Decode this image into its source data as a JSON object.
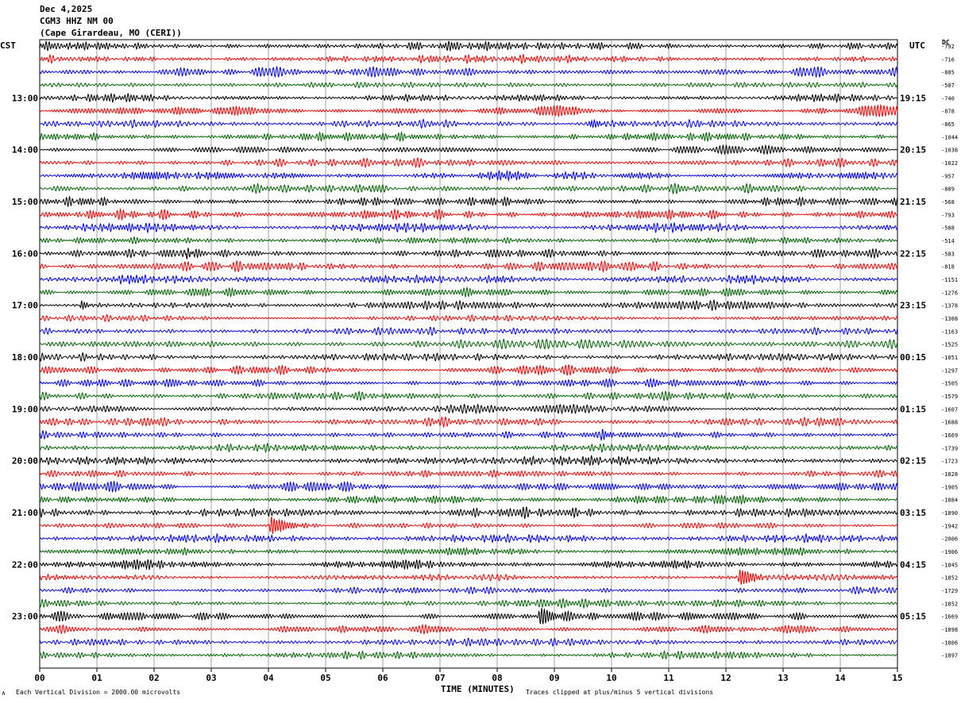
{
  "header": {
    "date": "Dec 4,2025",
    "station": "CGM3 HHZ NM 00",
    "location": "(Cape Girardeau, MO (CERI))"
  },
  "left_axis_label": "CST",
  "right_axis_label": "UTC",
  "dc_label": "DC",
  "footer": {
    "scale_note": "Each Vertical Division = 2000.00 microvolts",
    "clip_note": "Traces clipped at plus/minus 5 vertical divisions",
    "mark": "∧"
  },
  "colors": {
    "trace_cycle": [
      "#000000",
      "#ff0000",
      "#0000ff",
      "#006400"
    ],
    "grid": "#7a7a7a",
    "frame": "#000000"
  },
  "chart_data": {
    "type": "line",
    "title": "CGM3 HHZ NM 00",
    "xlabel": "TIME (MINUTES)",
    "xlim": [
      0,
      15
    ],
    "x_ticks": [
      "00",
      "01",
      "02",
      "03",
      "04",
      "05",
      "06",
      "07",
      "08",
      "09",
      "10",
      "11",
      "12",
      "13",
      "14",
      "15"
    ],
    "trace_count": 48,
    "trace_minutes": 15,
    "local_time_labels": [
      {
        "trace": 4,
        "label": "13:00"
      },
      {
        "trace": 8,
        "label": "14:00"
      },
      {
        "trace": 12,
        "label": "15:00"
      },
      {
        "trace": 16,
        "label": "16:00"
      },
      {
        "trace": 20,
        "label": "17:00"
      },
      {
        "trace": 24,
        "label": "18:00"
      },
      {
        "trace": 28,
        "label": "19:00"
      },
      {
        "trace": 32,
        "label": "20:00"
      },
      {
        "trace": 36,
        "label": "21:00"
      },
      {
        "trace": 40,
        "label": "22:00"
      },
      {
        "trace": 44,
        "label": "23:00"
      }
    ],
    "utc_time_labels": [
      {
        "trace": 4,
        "label": "19:15"
      },
      {
        "trace": 8,
        "label": "20:15"
      },
      {
        "trace": 12,
        "label": "21:15"
      },
      {
        "trace": 16,
        "label": "22:15"
      },
      {
        "trace": 20,
        "label": "23:15"
      },
      {
        "trace": 24,
        "label": "00:15"
      },
      {
        "trace": 28,
        "label": "01:15"
      },
      {
        "trace": 32,
        "label": "02:15"
      },
      {
        "trace": 36,
        "label": "03:15"
      },
      {
        "trace": 40,
        "label": "04:15"
      },
      {
        "trace": 44,
        "label": "05:15"
      }
    ],
    "dc_offsets": [
      "-792",
      "-716",
      "-885",
      "-507",
      "-740",
      "-878",
      "-865",
      "-1044",
      "-1038",
      "-1022",
      "-957",
      "-889",
      "-568",
      "-793",
      "-588",
      "-514",
      "-583",
      "-818",
      "-1151",
      "-1276",
      "-1378",
      "-1308",
      "-1163",
      "-1525",
      "-1051",
      "-1297",
      "-1505",
      "-1579",
      "-1607",
      "-1688",
      "-1669",
      "-1739",
      "-1723",
      "-1828",
      "-1905",
      "-1884",
      "-1890",
      "-1942",
      "-2006",
      "-1906",
      "-1845",
      "-1852",
      "-1729",
      "-1852",
      "-1669",
      "-1898",
      "-1806",
      "-1897"
    ],
    "noise_amplitude_divisions": 0.45,
    "events": [
      {
        "trace": 16,
        "minute": 2.55,
        "duration_min": 0.3,
        "amplitude": 1.0
      },
      {
        "trace": 37,
        "minute": 4.0,
        "duration_min": 0.9,
        "amplitude": 1.4
      },
      {
        "trace": 41,
        "minute": 12.2,
        "duration_min": 0.9,
        "amplitude": 1.2
      },
      {
        "trace": 44,
        "minute": 8.7,
        "duration_min": 1.1,
        "amplitude": 1.1
      },
      {
        "trace": 30,
        "minute": 9.8,
        "duration_min": 0.4,
        "amplitude": 0.8
      },
      {
        "trace": 20,
        "minute": 0.7,
        "duration_min": 0.5,
        "amplitude": 0.7
      },
      {
        "trace": 6,
        "minute": 9.6,
        "duration_min": 0.9,
        "amplitude": 0.6
      }
    ]
  }
}
